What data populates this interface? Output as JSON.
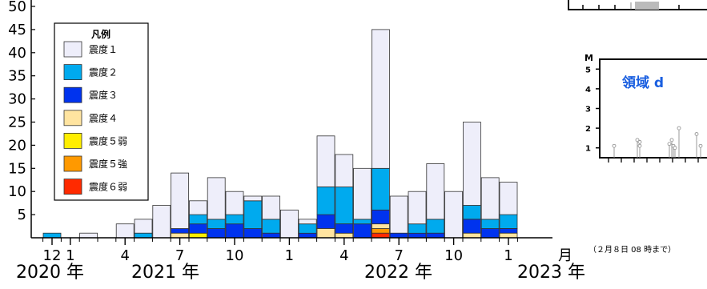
{
  "chart_data": {
    "type": "bar",
    "stacked": true,
    "categories": [
      "2020-12",
      "2021-01",
      "2021-02",
      "2021-03",
      "2021-04",
      "2021-05",
      "2021-06",
      "2021-07",
      "2021-08",
      "2021-09",
      "2021-10",
      "2021-11",
      "2021-12",
      "2022-01",
      "2022-02",
      "2022-03",
      "2022-04",
      "2022-05",
      "2022-06",
      "2022-07",
      "2022-08",
      "2022-09",
      "2022-10",
      "2022-11",
      "2022-12",
      "2023-01"
    ],
    "series": [
      {
        "name": "震度６弱",
        "color": "#ff2a00",
        "values": [
          0,
          0,
          0,
          0,
          0,
          0,
          0,
          0,
          0,
          0,
          0,
          0,
          0,
          0,
          0,
          0,
          0,
          0,
          1,
          0,
          0,
          0,
          0,
          0,
          0,
          0
        ]
      },
      {
        "name": "震度５強",
        "color": "#ff9900",
        "values": [
          0,
          0,
          0,
          0,
          0,
          0,
          0,
          0,
          0,
          0,
          0,
          0,
          0,
          0,
          0,
          0,
          0,
          0,
          1,
          0,
          0,
          0,
          0,
          0,
          0,
          0
        ]
      },
      {
        "name": "震度５弱",
        "color": "#ffee00",
        "values": [
          0,
          0,
          0,
          0,
          0,
          0,
          0,
          0,
          1,
          0,
          0,
          0,
          0,
          0,
          0,
          0,
          0,
          0,
          0,
          0,
          0,
          0,
          0,
          0,
          0,
          0
        ]
      },
      {
        "name": "震度４",
        "color": "#ffe4a0",
        "values": [
          0,
          0,
          0,
          0,
          0,
          0,
          0,
          1,
          0,
          0,
          0,
          0,
          0,
          0,
          0,
          2,
          1,
          0,
          1,
          0,
          0,
          0,
          0,
          1,
          0,
          1
        ]
      },
      {
        "name": "震度３",
        "color": "#0033ee",
        "values": [
          0,
          0,
          0,
          0,
          0,
          0,
          0,
          1,
          2,
          2,
          3,
          2,
          1,
          0,
          1,
          3,
          2,
          3,
          3,
          1,
          1,
          1,
          0,
          3,
          2,
          1
        ]
      },
      {
        "name": "震度２",
        "color": "#00aaee",
        "values": [
          1,
          0,
          0,
          0,
          0,
          1,
          0,
          0,
          2,
          2,
          2,
          6,
          3,
          0,
          2,
          6,
          8,
          1,
          9,
          0,
          2,
          3,
          0,
          3,
          2,
          3
        ]
      },
      {
        "name": "震度１",
        "color": "#eeeefa",
        "values": [
          0,
          0,
          1,
          0,
          3,
          3,
          7,
          12,
          3,
          9,
          5,
          1,
          5,
          6,
          1,
          11,
          7,
          11,
          30,
          8,
          7,
          12,
          10,
          18,
          9,
          7
        ]
      }
    ],
    "ylim": [
      0,
      50
    ],
    "yticks": [
      5,
      10,
      15,
      20,
      25,
      30,
      35,
      40,
      45,
      50
    ],
    "x_tick_labels": [
      "12",
      "1",
      "4",
      "7",
      "10",
      "1",
      "4",
      "7",
      "10",
      "1"
    ],
    "x_unit": "月",
    "year_labels": [
      "2020 年",
      "2021 年",
      "2022 年",
      "2023 年"
    ],
    "legend_title": "凡例",
    "legend_position": "top-left",
    "note": "（２月８日 08 時まで）",
    "inset": {
      "title": "領域 d",
      "ylabel": "M",
      "yticks": [
        "5",
        "4",
        "3",
        "2",
        "1"
      ],
      "ylim": [
        0.5,
        5.5
      ]
    }
  }
}
